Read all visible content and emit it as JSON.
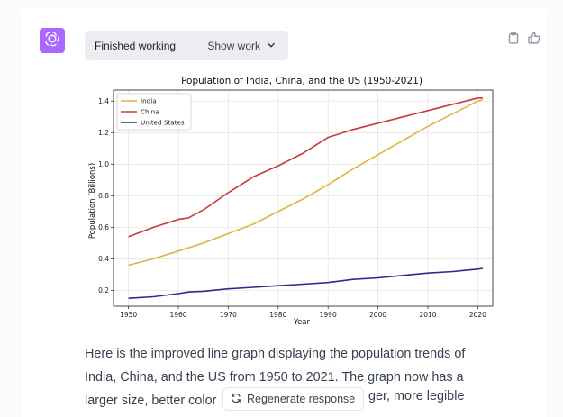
{
  "colors": {
    "avatar": "#ab68ff",
    "india": "#e3b33f",
    "china": "#c9393f",
    "us": "#2d2a8c",
    "pill": "#ececf1"
  },
  "status": {
    "text": "Finished working",
    "show_work": "Show work"
  },
  "icons": {
    "avatar": "openai-logo-icon",
    "expand": "chevron-down-icon",
    "copy": "clipboard-icon",
    "like": "thumbs-up-icon",
    "regenerate": "refresh-icon"
  },
  "chart_data": {
    "type": "line",
    "title": "Population of India, China, and the US (1950-2021)",
    "xlabel": "Year",
    "ylabel": "Population (Billions)",
    "xlim": [
      1947,
      2023
    ],
    "ylim": [
      0.1,
      1.47
    ],
    "grid": true,
    "legend": "top-left",
    "x_ticks": [
      1950,
      1960,
      1970,
      1980,
      1990,
      2000,
      2010,
      2020
    ],
    "y_ticks": [
      0.2,
      0.4,
      0.6,
      0.8,
      1.0,
      1.2,
      1.4
    ],
    "x_tick_labels": [
      "1950",
      "1960",
      "1970",
      "1980",
      "1990",
      "2000",
      "2010",
      "2020"
    ],
    "y_tick_labels": [
      "0.2",
      "0.4",
      "0.6",
      "0.8",
      "1.0",
      "1.2",
      "1.4"
    ],
    "x": [
      1950,
      1955,
      1960,
      1962,
      1965,
      1970,
      1975,
      1980,
      1985,
      1990,
      1995,
      2000,
      2005,
      2010,
      2015,
      2020,
      2021
    ],
    "series": [
      {
        "name": "India",
        "color": "#e3b33f",
        "values": [
          0.36,
          0.4,
          0.45,
          0.47,
          0.5,
          0.56,
          0.62,
          0.7,
          0.78,
          0.87,
          0.97,
          1.06,
          1.15,
          1.24,
          1.32,
          1.4,
          1.41
        ]
      },
      {
        "name": "China",
        "color": "#c9393f",
        "values": [
          0.54,
          0.6,
          0.65,
          0.66,
          0.71,
          0.82,
          0.92,
          0.99,
          1.07,
          1.17,
          1.22,
          1.26,
          1.3,
          1.34,
          1.38,
          1.42,
          1.42
        ]
      },
      {
        "name": "United States",
        "color": "#2d2a8c",
        "values": [
          0.15,
          0.16,
          0.18,
          0.19,
          0.195,
          0.21,
          0.22,
          0.23,
          0.24,
          0.25,
          0.27,
          0.28,
          0.295,
          0.31,
          0.32,
          0.335,
          0.34
        ]
      }
    ]
  },
  "response": {
    "line1": "Here is the improved line graph displaying the population trends of",
    "line2": "India, China, and the US from 1950 to 2021. The graph now has a",
    "line3_start": "larger size, better color",
    "line3_end": "ger, more legible"
  },
  "regenerate": {
    "label": "Regenerate response"
  }
}
